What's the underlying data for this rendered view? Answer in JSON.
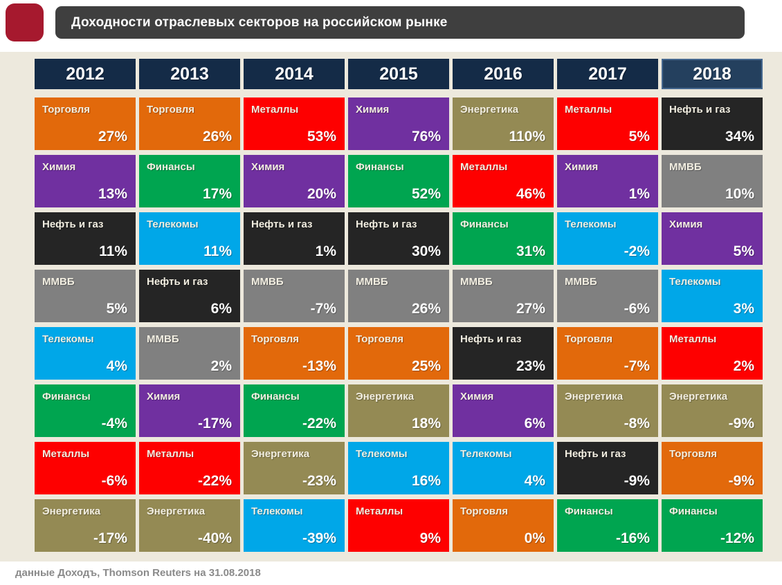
{
  "page": {
    "background": "#ffffff",
    "panel_background": "#EDE9DD"
  },
  "header": {
    "logo_color": "#A6192E",
    "bar_color": "#3F3F3F",
    "title": "Доходности отраслевых секторов на российском рынке"
  },
  "footer": {
    "source_note": "данные Доходъ, Thomson Reuters на 31.08.2018"
  },
  "sector_colors": {
    "Торговля": "#E2690B",
    "Химия": "#7030A0",
    "Финансы": "#00A550",
    "Нефть и газ": "#252525",
    "Телекомы": "#00A7E8",
    "Металлы": "#FE0000",
    "Энергетика": "#948A54",
    "ММВБ": "#808080"
  },
  "year_header_style": {
    "background": "#142B47",
    "highlight_background": "#24405E",
    "highlight_border": "#46688F",
    "text_color": "#ffffff"
  },
  "chart_data": {
    "type": "heatmap",
    "title": "Доходности отраслевых секторов на российском рынке",
    "legend_position": "none",
    "years": [
      "2012",
      "2013",
      "2014",
      "2015",
      "2016",
      "2017",
      "2018"
    ],
    "columns": [
      {
        "year": "2012",
        "highlight": false,
        "cells": [
          {
            "sector": "Торговля",
            "value": "27%"
          },
          {
            "sector": "Химия",
            "value": "13%"
          },
          {
            "sector": "Нефть и газ",
            "value": "11%"
          },
          {
            "sector": "ММВБ",
            "value": "5%"
          },
          {
            "sector": "Телекомы",
            "value": "4%"
          },
          {
            "sector": "Финансы",
            "value": "-4%"
          },
          {
            "sector": "Металлы",
            "value": "-6%"
          },
          {
            "sector": "Энергетика",
            "value": "-17%"
          }
        ]
      },
      {
        "year": "2013",
        "highlight": false,
        "cells": [
          {
            "sector": "Торговля",
            "value": "26%"
          },
          {
            "sector": "Финансы",
            "value": "17%"
          },
          {
            "sector": "Телекомы",
            "value": "11%"
          },
          {
            "sector": "Нефть и газ",
            "value": "6%"
          },
          {
            "sector": "ММВБ",
            "value": "2%"
          },
          {
            "sector": "Химия",
            "value": "-17%"
          },
          {
            "sector": "Металлы",
            "value": "-22%"
          },
          {
            "sector": "Энергетика",
            "value": "-40%"
          }
        ]
      },
      {
        "year": "2014",
        "highlight": false,
        "cells": [
          {
            "sector": "Металлы",
            "value": "53%"
          },
          {
            "sector": "Химия",
            "value": "20%"
          },
          {
            "sector": "Нефть и газ",
            "value": "1%"
          },
          {
            "sector": "ММВБ",
            "value": "-7%"
          },
          {
            "sector": "Торговля",
            "value": "-13%"
          },
          {
            "sector": "Финансы",
            "value": "-22%"
          },
          {
            "sector": "Энергетика",
            "value": "-23%"
          },
          {
            "sector": "Телекомы",
            "value": "-39%"
          }
        ]
      },
      {
        "year": "2015",
        "highlight": false,
        "cells": [
          {
            "sector": "Химия",
            "value": "76%"
          },
          {
            "sector": "Финансы",
            "value": "52%"
          },
          {
            "sector": "Нефть и газ",
            "value": "30%"
          },
          {
            "sector": "ММВБ",
            "value": "26%"
          },
          {
            "sector": "Торговля",
            "value": "25%"
          },
          {
            "sector": "Энергетика",
            "value": "18%"
          },
          {
            "sector": "Телекомы",
            "value": "16%"
          },
          {
            "sector": "Металлы",
            "value": "9%"
          }
        ]
      },
      {
        "year": "2016",
        "highlight": false,
        "cells": [
          {
            "sector": "Энергетика",
            "value": "110%"
          },
          {
            "sector": "Металлы",
            "value": "46%"
          },
          {
            "sector": "Финансы",
            "value": "31%"
          },
          {
            "sector": "ММВБ",
            "value": "27%"
          },
          {
            "sector": "Нефть и газ",
            "value": "23%"
          },
          {
            "sector": "Химия",
            "value": "6%"
          },
          {
            "sector": "Телекомы",
            "value": "4%"
          },
          {
            "sector": "Торговля",
            "value": "0%"
          }
        ]
      },
      {
        "year": "2017",
        "highlight": false,
        "cells": [
          {
            "sector": "Металлы",
            "value": "5%"
          },
          {
            "sector": "Химия",
            "value": "1%"
          },
          {
            "sector": "Телекомы",
            "value": "-2%"
          },
          {
            "sector": "ММВБ",
            "value": "-6%"
          },
          {
            "sector": "Торговля",
            "value": "-7%"
          },
          {
            "sector": "Энергетика",
            "value": "-8%"
          },
          {
            "sector": "Нефть и газ",
            "value": "-9%"
          },
          {
            "sector": "Финансы",
            "value": "-16%"
          }
        ]
      },
      {
        "year": "2018",
        "highlight": true,
        "cells": [
          {
            "sector": "Нефть и газ",
            "value": "34%"
          },
          {
            "sector": "ММВБ",
            "value": "10%"
          },
          {
            "sector": "Химия",
            "value": "5%"
          },
          {
            "sector": "Телекомы",
            "value": "3%"
          },
          {
            "sector": "Металлы",
            "value": "2%"
          },
          {
            "sector": "Энергетика",
            "value": "-9%"
          },
          {
            "sector": "Торговля",
            "value": "-9%"
          },
          {
            "sector": "Финансы",
            "value": "-12%"
          }
        ]
      }
    ]
  }
}
